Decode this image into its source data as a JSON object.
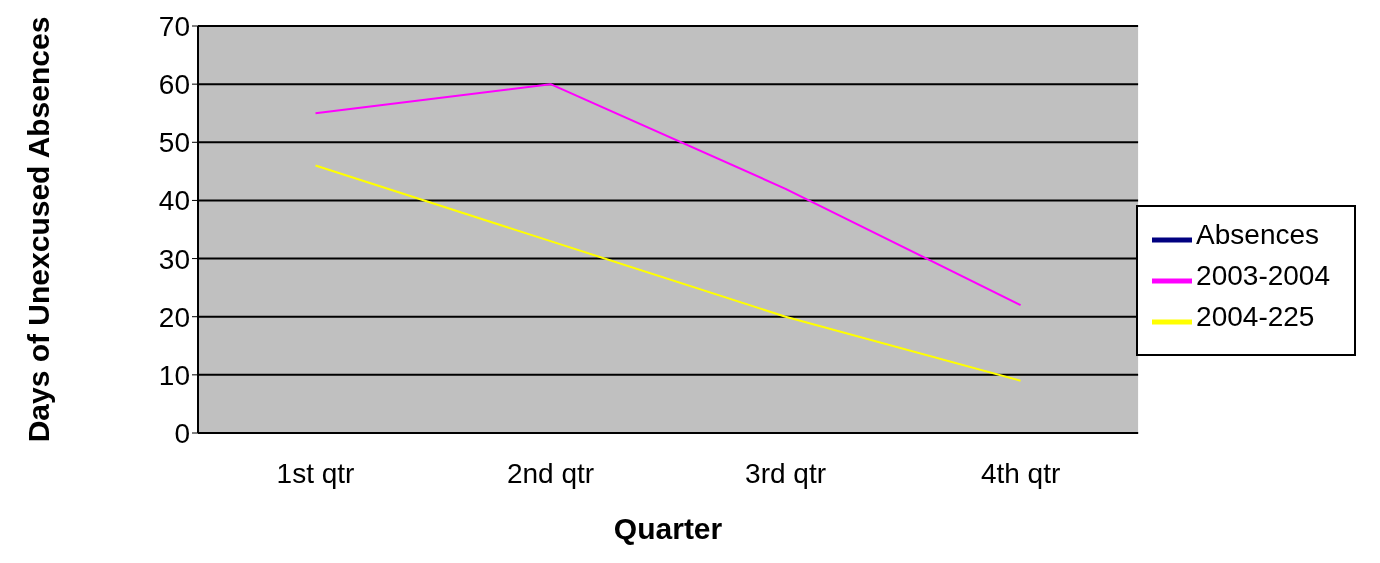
{
  "chart_data": {
    "type": "line",
    "xlabel": "Quarter",
    "ylabel": "Days of Unexcused Absences",
    "categories": [
      "1st qtr",
      "2nd qtr",
      "3rd qtr",
      "4th qtr"
    ],
    "series": [
      {
        "name": "Absences",
        "color": "#000080",
        "values": [
          null,
          null,
          null,
          null
        ]
      },
      {
        "name": "2003-2004",
        "color": "#ff00ff",
        "values": [
          55,
          60,
          42,
          22
        ]
      },
      {
        "name": "2004-225",
        "color": "#ffff00",
        "values": [
          46,
          33,
          20,
          9
        ]
      }
    ],
    "ylim": [
      0,
      70
    ],
    "yticks": [
      0,
      10,
      20,
      30,
      40,
      50,
      60,
      70
    ],
    "grid": "y",
    "legend": "right",
    "marker": "none",
    "line_style": "solid"
  }
}
